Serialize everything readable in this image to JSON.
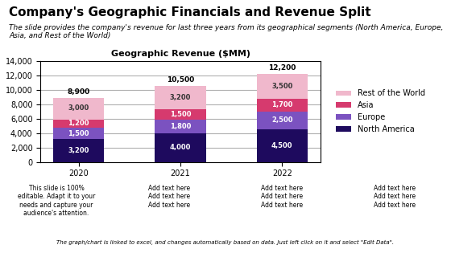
{
  "chart_data": {
    "type": "bar",
    "stacked": true,
    "title": "Company's Geographic Financials and Revenue Split",
    "subtitle": "The slide provides the company's revenue for last three years from its geographical segments (North America, Europe, Asia, and Rest of the World)",
    "annotations": [
      "Geographic Revenue ($MM)",
      "This slide is 100%\neditable. Adapt it to your\nneeds and capture your\naudience's attention.",
      "Add text here\nAdd text here\nAdd text here",
      "Add text here\nAdd text here\nAdd text here",
      "Add text here\nAdd text here\nAdd text here",
      "The graph/chart is linked to excel, and changes automatically based on data. Just left click on it and select \"Edit Data\"."
    ],
    "categories": [
      "2020",
      "2021",
      "2022"
    ],
    "series": [
      {
        "name": "North America",
        "color": "#1e0a5e",
        "values": [
          3200,
          4000,
          4500
        ],
        "value_labels": [
          "3,200",
          "4,000",
          "4,500"
        ]
      },
      {
        "name": "Europe",
        "color": "#7b52c0",
        "values": [
          1500,
          1800,
          2500
        ],
        "value_labels": [
          "1,500",
          "1,800",
          "2,500"
        ]
      },
      {
        "name": "Asia",
        "color": "#d63a6e",
        "values": [
          1200,
          1500,
          1700
        ],
        "value_labels": [
          "1,200",
          "1,500",
          "1,700"
        ]
      },
      {
        "name": "Rest of the World",
        "color": "#f0b8cc",
        "values": [
          3000,
          3200,
          3500
        ],
        "value_labels": [
          "3,000",
          "3,200",
          "3,500"
        ]
      }
    ],
    "totals": [
      8900,
      10500,
      12200
    ],
    "total_labels": [
      "8,900",
      "10,500",
      "12,200"
    ],
    "data_labels": true,
    "ylim": [
      0,
      14000
    ],
    "yticks": [
      0,
      {
        "value": 2000,
        "label": "2,000"
      },
      {
        "value": 4000,
        "label": "4,000"
      },
      {
        "value": 6000,
        "label": "6,000"
      },
      {
        "value": 8000,
        "label": "8,000"
      },
      {
        "value": 10000,
        "label": "10,000"
      },
      {
        "value": 12000,
        "label": "12,000"
      },
      {
        "value": 14000,
        "label": "14,000"
      }
    ],
    "grid": true,
    "legend": "center left"
  }
}
